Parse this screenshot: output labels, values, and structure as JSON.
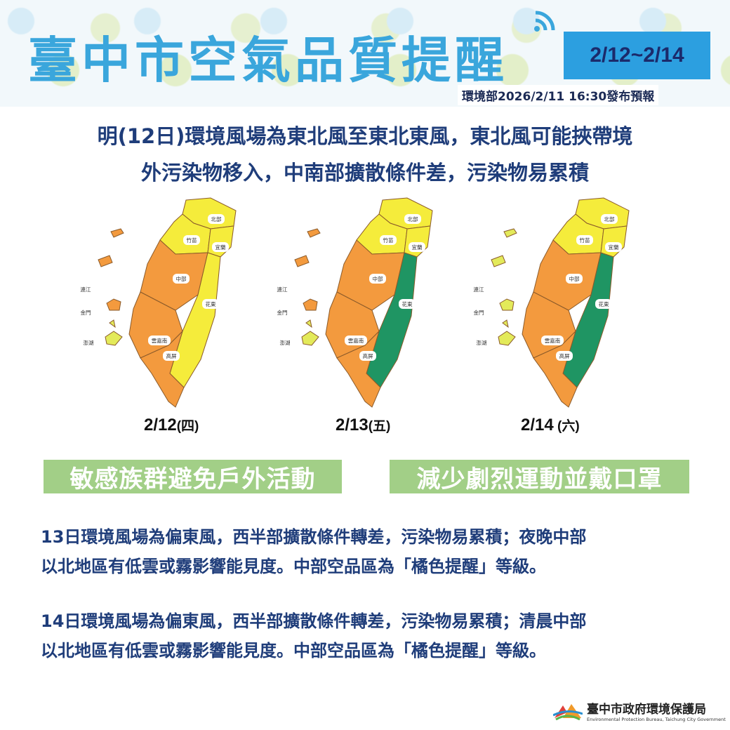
{
  "header": {
    "title": "臺中市空氣品質提醒",
    "date_range": "2/12~2/14",
    "issued": "環境部2026/2/11  16:30發布預報"
  },
  "lead": {
    "lines": [
      "明(12日)環境風場為東北風至東北東風，東北風可能挾帶境",
      "外污染物移入，中南部擴散條件差，污染物易累積"
    ]
  },
  "colors": {
    "yellow": "#f5ec3b",
    "orange": "#f39a3e",
    "green": "#1f9563",
    "light_yellow": "#e3ea5a"
  },
  "region_labels": {
    "north": "北部",
    "zhumiao": "竹苗",
    "yilan": "宜蘭",
    "central": "中部",
    "huadong": "花東",
    "yunjianan": "雲嘉南",
    "gaoping": "高屏",
    "lienchiang": "連江",
    "kinmen": "金門",
    "penghu": "澎湖"
  },
  "maps": [
    {
      "date": "2/12",
      "weekday": "(四)",
      "levels": {
        "north": "yellow",
        "zhumiao": "yellow",
        "yilan": "yellow",
        "central": "orange",
        "huadong": "yellow",
        "yunjianan": "orange",
        "gaoping": "orange",
        "lienchiang": "orange",
        "kinmen": "orange",
        "penghu": "light_yellow"
      }
    },
    {
      "date": "2/13",
      "weekday": "(五)",
      "levels": {
        "north": "yellow",
        "zhumiao": "yellow",
        "yilan": "yellow",
        "central": "orange",
        "huadong": "green",
        "yunjianan": "orange",
        "gaoping": "orange",
        "lienchiang": "orange",
        "kinmen": "orange",
        "penghu": "light_yellow"
      }
    },
    {
      "date": "2/14",
      "weekday": " (六)",
      "levels": {
        "north": "yellow",
        "zhumiao": "yellow",
        "yilan": "yellow",
        "central": "orange",
        "huadong": "green",
        "yunjianan": "orange",
        "gaoping": "orange",
        "lienchiang": "light_yellow",
        "kinmen": "light_yellow",
        "penghu": "light_yellow"
      }
    }
  ],
  "banners": [
    "敏感族群避免戶外活動",
    "減少劇烈運動並戴口罩"
  ],
  "paragraphs": [
    [
      "13日環境風場為偏東風，西半部擴散條件轉差，污染物易累積；夜晚中部",
      "以北地區有低雲或霧影響能見度。中部空品區為「橘色提醒」等級。"
    ],
    [
      "14日環境風場為偏東風，西半部擴散條件轉差，污染物易累積；清晨中部",
      "以北地區有低雲或霧影響能見度。中部空品區為「橘色提醒」等級。"
    ]
  ],
  "footer": {
    "name": "臺中市政府環境保護局",
    "english": "Environmental Protection Bureau, Taichung City Government"
  }
}
